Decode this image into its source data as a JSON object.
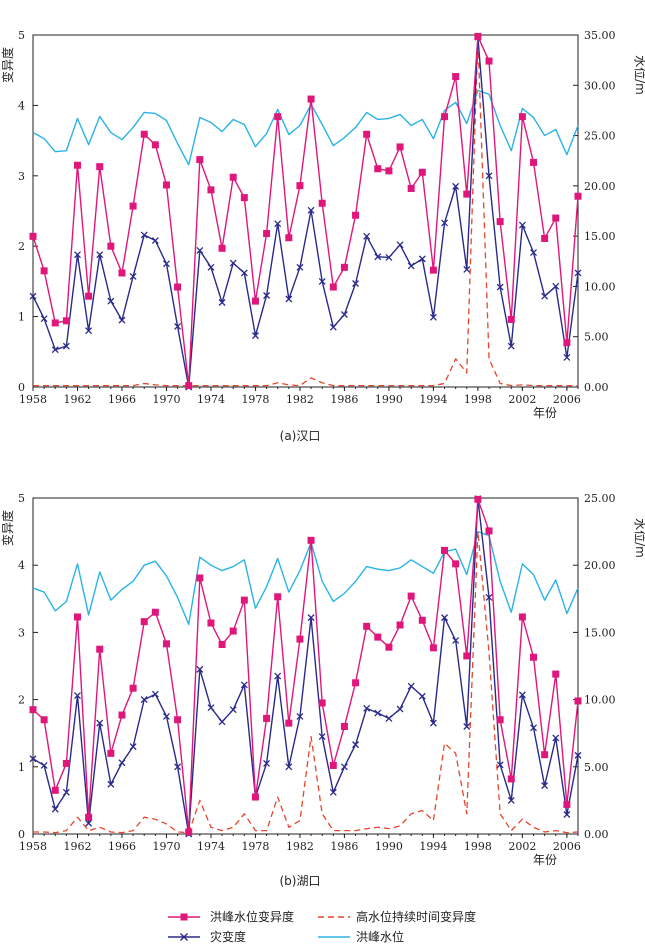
{
  "colors": {
    "variability": "#e0177b",
    "disaster": "#2a2a8a",
    "duration": "#e8452c",
    "level": "#2bb3e6",
    "axis": "#222222"
  },
  "legend": {
    "variability": "洪峰水位变异度",
    "duration": "高水位持续时间变异度",
    "disaster": "灾变度",
    "level": "洪峰水位"
  },
  "chart_data": [
    {
      "type": "line",
      "caption": "(a)汉口",
      "ylabel_left": "变异度",
      "ylabel_right": "水位/m",
      "xlabel": "年份",
      "xlim": [
        1958,
        2007
      ],
      "ylim_left": [
        0,
        5
      ],
      "ylim_right": [
        0,
        35
      ],
      "xticks": [
        "1958",
        "1962",
        "1966",
        "1970",
        "1974",
        "1978",
        "1982",
        "1986",
        "1990",
        "1994",
        "1998",
        "2002",
        "2006"
      ],
      "yticks_left": [
        "0",
        "1",
        "2",
        "3",
        "4",
        "5"
      ],
      "yticks_right": [
        "0.00",
        "5.00",
        "10.00",
        "15.00",
        "20.00",
        "25.00",
        "30.00",
        "35.00"
      ],
      "x": [
        1958,
        1959,
        1960,
        1961,
        1962,
        1963,
        1964,
        1965,
        1966,
        1967,
        1968,
        1969,
        1970,
        1971,
        1972,
        1973,
        1974,
        1975,
        1976,
        1977,
        1978,
        1979,
        1980,
        1981,
        1982,
        1983,
        1984,
        1985,
        1986,
        1987,
        1988,
        1989,
        1990,
        1991,
        1992,
        1993,
        1994,
        1995,
        1996,
        1997,
        1998,
        1999,
        2000,
        2001,
        2002,
        2003,
        2004,
        2005,
        2006,
        2007
      ],
      "series": [
        {
          "name": "洪峰水位变异度",
          "key": "variability",
          "axis": "left",
          "values": [
            2.14,
            1.65,
            0.91,
            0.94,
            3.15,
            1.29,
            3.13,
            2.0,
            1.62,
            2.57,
            3.59,
            3.44,
            2.87,
            1.42,
            0.02,
            3.23,
            2.8,
            1.97,
            2.98,
            2.69,
            1.22,
            2.18,
            3.84,
            2.12,
            2.86,
            4.09,
            2.61,
            1.42,
            1.7,
            2.44,
            3.59,
            3.1,
            3.07,
            3.41,
            2.82,
            3.05,
            1.66,
            3.84,
            4.41,
            2.74,
            4.98,
            4.63,
            2.35,
            0.96,
            3.84,
            3.19,
            2.11,
            2.4,
            0.63,
            2.71
          ]
        },
        {
          "name": "灾变度",
          "key": "disaster",
          "axis": "left",
          "values": [
            1.29,
            0.97,
            0.53,
            0.58,
            1.88,
            0.8,
            1.88,
            1.22,
            0.95,
            1.57,
            2.16,
            2.08,
            1.75,
            0.86,
            0.0,
            1.94,
            1.7,
            1.2,
            1.76,
            1.62,
            0.73,
            1.3,
            2.32,
            1.25,
            1.7,
            2.51,
            1.5,
            0.85,
            1.03,
            1.47,
            2.14,
            1.85,
            1.84,
            2.02,
            1.72,
            1.82,
            0.99,
            2.33,
            2.85,
            1.67,
            4.97,
            3.0,
            1.42,
            0.58,
            2.3,
            1.91,
            1.29,
            1.43,
            0.42,
            1.62
          ]
        },
        {
          "name": "高水位持续时间变异度",
          "key": "duration",
          "axis": "left",
          "dashed": true,
          "values": [
            0.02,
            0.02,
            0.02,
            0.02,
            0.02,
            0.02,
            0.02,
            0.02,
            0.02,
            0.02,
            0.05,
            0.03,
            0.02,
            0.02,
            0.02,
            0.02,
            0.02,
            0.02,
            0.02,
            0.02,
            0.02,
            0.02,
            0.06,
            0.03,
            0.02,
            0.13,
            0.06,
            0.02,
            0.02,
            0.02,
            0.02,
            0.02,
            0.02,
            0.02,
            0.02,
            0.02,
            0.02,
            0.05,
            0.4,
            0.2,
            4.95,
            0.4,
            0.05,
            0.02,
            0.03,
            0.02,
            0.02,
            0.02,
            0.02,
            0.02
          ]
        },
        {
          "name": "洪峰水位",
          "key": "level",
          "axis": "right",
          "values": [
            25.3,
            24.7,
            23.4,
            23.5,
            26.7,
            24.1,
            26.9,
            25.3,
            24.6,
            25.8,
            27.3,
            27.2,
            26.5,
            24.2,
            22.1,
            26.8,
            26.3,
            25.4,
            26.6,
            26.1,
            23.9,
            25.2,
            27.6,
            25.1,
            26.0,
            28.1,
            26.1,
            24.0,
            24.8,
            25.8,
            27.3,
            26.6,
            26.7,
            27.1,
            26.0,
            26.6,
            24.7,
            27.5,
            28.3,
            26.2,
            29.5,
            29.1,
            26.0,
            23.5,
            27.7,
            26.8,
            25.0,
            25.6,
            23.1,
            26.0
          ]
        }
      ]
    },
    {
      "type": "line",
      "caption": "(b)湖口",
      "ylabel_left": "变异度",
      "ylabel_right": "水位/m",
      "xlabel": "年份",
      "xlim": [
        1958,
        2007
      ],
      "ylim_left": [
        0,
        5
      ],
      "ylim_right": [
        0,
        25
      ],
      "xticks": [
        "1958",
        "1962",
        "1966",
        "1970",
        "1974",
        "1978",
        "1982",
        "1986",
        "1990",
        "1994",
        "1998",
        "2002",
        "2006"
      ],
      "yticks_left": [
        "0",
        "1",
        "2",
        "3",
        "4",
        "5"
      ],
      "yticks_right": [
        "0.00",
        "5.00",
        "10.00",
        "15.00",
        "20.00",
        "25.00"
      ],
      "x": [
        1958,
        1959,
        1960,
        1961,
        1962,
        1963,
        1964,
        1965,
        1966,
        1967,
        1968,
        1969,
        1970,
        1971,
        1972,
        1973,
        1974,
        1975,
        1976,
        1977,
        1978,
        1979,
        1980,
        1981,
        1982,
        1983,
        1984,
        1985,
        1986,
        1987,
        1988,
        1989,
        1990,
        1991,
        1992,
        1993,
        1994,
        1995,
        1996,
        1997,
        1998,
        1999,
        2000,
        2001,
        2002,
        2003,
        2004,
        2005,
        2006,
        2007
      ],
      "series": [
        {
          "name": "洪峰水位变异度",
          "key": "variability",
          "axis": "left",
          "values": [
            1.85,
            1.7,
            0.65,
            1.05,
            3.23,
            0.25,
            2.75,
            1.2,
            1.77,
            2.17,
            3.16,
            3.3,
            2.83,
            1.7,
            0.03,
            3.81,
            3.14,
            2.82,
            3.02,
            3.48,
            0.55,
            1.72,
            3.53,
            1.65,
            2.9,
            4.37,
            1.95,
            1.02,
            1.6,
            2.25,
            3.09,
            2.93,
            2.78,
            3.11,
            3.54,
            3.18,
            2.77,
            4.22,
            4.02,
            2.65,
            4.98,
            4.51,
            1.7,
            0.82,
            3.23,
            2.63,
            1.18,
            2.38,
            0.44,
            1.98
          ]
        },
        {
          "name": "灾变度",
          "key": "disaster",
          "axis": "left",
          "values": [
            1.12,
            1.02,
            0.37,
            0.62,
            2.06,
            0.16,
            1.65,
            0.74,
            1.06,
            1.3,
            2.0,
            2.08,
            1.75,
            1.0,
            0.0,
            2.45,
            1.88,
            1.67,
            1.85,
            2.22,
            0.55,
            1.05,
            2.35,
            1.0,
            1.75,
            3.22,
            1.45,
            0.62,
            1.0,
            1.33,
            1.87,
            1.8,
            1.72,
            1.86,
            2.2,
            2.05,
            1.65,
            3.22,
            2.88,
            1.6,
            4.99,
            3.52,
            1.03,
            0.5,
            2.07,
            1.58,
            0.72,
            1.43,
            0.29,
            1.17
          ]
        },
        {
          "name": "高水位持续时间变异度",
          "key": "duration",
          "axis": "left",
          "dashed": true,
          "values": [
            0.03,
            0.03,
            0.02,
            0.05,
            0.25,
            0.05,
            0.1,
            0.03,
            0.02,
            0.05,
            0.25,
            0.22,
            0.15,
            0.03,
            0.02,
            0.5,
            0.1,
            0.05,
            0.1,
            0.3,
            0.05,
            0.05,
            0.55,
            0.1,
            0.2,
            1.45,
            0.3,
            0.05,
            0.05,
            0.05,
            0.08,
            0.1,
            0.08,
            0.12,
            0.3,
            0.35,
            0.2,
            1.35,
            1.2,
            0.3,
            4.5,
            2.7,
            0.3,
            0.05,
            0.22,
            0.1,
            0.03,
            0.05,
            0.02,
            0.03
          ]
        },
        {
          "name": "洪峰水位",
          "key": "level",
          "axis": "right",
          "values": [
            18.3,
            18.0,
            16.6,
            17.3,
            20.1,
            16.3,
            19.5,
            17.4,
            18.2,
            18.8,
            20.0,
            20.3,
            19.2,
            17.6,
            15.6,
            20.6,
            20.0,
            19.6,
            19.9,
            20.4,
            16.8,
            18.4,
            20.5,
            18.0,
            19.6,
            21.7,
            18.8,
            17.3,
            17.9,
            18.8,
            19.9,
            19.7,
            19.6,
            19.8,
            20.4,
            19.9,
            19.4,
            21.0,
            21.2,
            19.3,
            22.5,
            22.2,
            18.8,
            16.5,
            20.1,
            19.3,
            17.4,
            18.9,
            16.4,
            18.3
          ]
        }
      ]
    }
  ]
}
